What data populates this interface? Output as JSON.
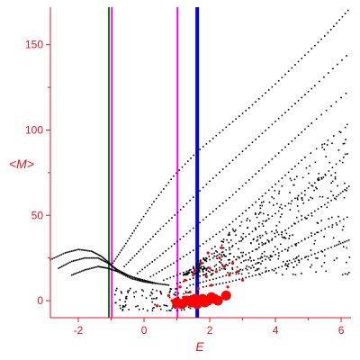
{
  "chart_data": {
    "type": "scatter",
    "title": "",
    "xlabel": "E",
    "ylabel": "<M>",
    "xlim": [
      -2.85,
      6.3
    ],
    "ylim": [
      -10,
      172
    ],
    "x_ticks": [
      -2,
      0,
      2,
      4,
      6
    ],
    "y_ticks": [
      0,
      50,
      100,
      150
    ],
    "x_tick_labels": [
      "-2",
      "0",
      "2",
      "4",
      "6"
    ],
    "y_tick_labels": [
      "0",
      "50",
      "100",
      "150"
    ],
    "grid": false,
    "legend": "none",
    "colors": {
      "axes": "#e8141e",
      "black_points": "#000000",
      "red_points": "#ff0000",
      "line_green": "#008000",
      "line_magenta": "#ff00ff",
      "line_blue": "#0000ff"
    },
    "vertical_lines": [
      {
        "x": -1.07,
        "color": "#008000",
        "width": "thin"
      },
      {
        "x": -0.98,
        "color": "#ff00ff",
        "width": "thin"
      },
      {
        "x": 1.02,
        "color": "#ff00ff",
        "width": "thin"
      },
      {
        "x": 1.62,
        "color": "#0000ff",
        "width": "thick"
      }
    ],
    "black_series": {
      "description": "dotted spectrum branches",
      "branches": [
        {
          "x": [
            -2.85,
            -2.4,
            -2.0,
            -1.6,
            -1.3,
            -1.05,
            -0.8,
            -0.4,
            0.0,
            0.4
          ],
          "y": [
            24,
            28,
            30,
            29,
            26,
            22,
            17,
            13,
            11,
            10
          ]
        },
        {
          "x": [
            -2.6,
            -2.2,
            -1.8,
            -1.4,
            -1.1,
            -0.8,
            -0.5,
            -0.1,
            0.3
          ],
          "y": [
            19,
            23,
            25,
            25,
            22,
            18,
            15,
            12,
            10
          ]
        },
        {
          "x": [
            -2.2,
            -1.8,
            -1.4,
            -1.1,
            -0.8,
            -0.4,
            0.0,
            0.4,
            0.8
          ],
          "y": [
            15,
            18,
            20,
            19,
            17,
            14,
            12,
            10,
            9
          ]
        },
        {
          "x": [
            -0.95,
            -0.6,
            -0.2,
            0.3,
            0.9,
            1.6,
            2.4,
            3.2,
            4.0,
            4.8,
            5.6,
            6.3
          ],
          "y": [
            22,
            32,
            44,
            58,
            73,
            87,
            100,
            113,
            127,
            142,
            157,
            172
          ]
        },
        {
          "x": [
            -0.6,
            -0.1,
            0.5,
            1.2,
            2.0,
            2.8,
            3.6,
            4.4,
            5.2,
            6.3
          ],
          "y": [
            20,
            30,
            42,
            55,
            70,
            84,
            98,
            112,
            126,
            146
          ]
        },
        {
          "x": [
            -0.2,
            0.4,
            1.1,
            1.9,
            2.7,
            3.5,
            4.3,
            5.1,
            6.3
          ],
          "y": [
            16,
            25,
            36,
            49,
            62,
            76,
            90,
            104,
            124
          ]
        },
        {
          "x": [
            0.2,
            0.9,
            1.7,
            2.5,
            3.3,
            4.1,
            4.9,
            6.3
          ],
          "y": [
            14,
            22,
            32,
            43,
            56,
            70,
            84,
            104
          ]
        },
        {
          "x": [
            0.6,
            1.4,
            2.2,
            3.0,
            3.8,
            4.6,
            5.4,
            6.3
          ],
          "y": [
            12,
            18,
            26,
            36,
            48,
            60,
            72,
            88
          ]
        },
        {
          "x": [
            1.0,
            1.8,
            2.6,
            3.4,
            4.2,
            5.0,
            5.8,
            6.3
          ],
          "y": [
            10,
            15,
            22,
            30,
            40,
            50,
            60,
            68
          ]
        },
        {
          "x": [
            1.4,
            2.2,
            3.0,
            3.8,
            4.6,
            5.4,
            6.3
          ],
          "y": [
            9,
            13,
            18,
            25,
            33,
            41,
            50
          ]
        },
        {
          "x": [
            1.8,
            2.6,
            3.4,
            4.2,
            5.0,
            5.8,
            6.3
          ],
          "y": [
            8,
            11,
            15,
            20,
            26,
            32,
            36
          ]
        }
      ],
      "scatter_region": {
        "x": [
          1.2,
          6.3
        ],
        "y": [
          15,
          110
        ]
      }
    },
    "red_points": [
      {
        "x": 0.85,
        "y": 0,
        "size": "small"
      },
      {
        "x": 1.0,
        "y": -1,
        "size": "large"
      },
      {
        "x": 1.15,
        "y": -2,
        "size": "large"
      },
      {
        "x": 1.3,
        "y": 0,
        "size": "large"
      },
      {
        "x": 1.45,
        "y": -1,
        "size": "large"
      },
      {
        "x": 1.55,
        "y": 1,
        "size": "large"
      },
      {
        "x": 1.62,
        "y": -2,
        "size": "large"
      },
      {
        "x": 1.7,
        "y": 0,
        "size": "large"
      },
      {
        "x": 1.78,
        "y": 1,
        "size": "large"
      },
      {
        "x": 1.85,
        "y": -1,
        "size": "large"
      },
      {
        "x": 1.95,
        "y": 0,
        "size": "large"
      },
      {
        "x": 2.05,
        "y": 2,
        "size": "large"
      },
      {
        "x": 2.15,
        "y": 1,
        "size": "large"
      },
      {
        "x": 2.25,
        "y": 0,
        "size": "large"
      },
      {
        "x": 2.5,
        "y": 3,
        "size": "large"
      },
      {
        "x": 0.4,
        "y": -3,
        "size": "small"
      },
      {
        "x": 0.75,
        "y": 3,
        "size": "small"
      },
      {
        "x": 1.1,
        "y": 8,
        "size": "small"
      },
      {
        "x": 1.25,
        "y": 12,
        "size": "small"
      },
      {
        "x": 1.55,
        "y": 18,
        "size": "small"
      },
      {
        "x": 1.75,
        "y": 22,
        "size": "small"
      },
      {
        "x": 1.9,
        "y": 14,
        "size": "small"
      },
      {
        "x": 2.05,
        "y": 9,
        "size": "small"
      },
      {
        "x": 2.2,
        "y": 17,
        "size": "small"
      },
      {
        "x": 2.3,
        "y": 25,
        "size": "small"
      },
      {
        "x": 2.45,
        "y": 20,
        "size": "small"
      },
      {
        "x": 2.6,
        "y": 15,
        "size": "small"
      },
      {
        "x": 2.7,
        "y": 22,
        "size": "small"
      },
      {
        "x": 2.85,
        "y": 17,
        "size": "small"
      },
      {
        "x": 3.0,
        "y": 12,
        "size": "small"
      },
      {
        "x": 1.4,
        "y": 5,
        "size": "small"
      },
      {
        "x": 1.65,
        "y": 7,
        "size": "small"
      },
      {
        "x": 1.95,
        "y": 28,
        "size": "small"
      },
      {
        "x": 2.35,
        "y": 31,
        "size": "small"
      },
      {
        "x": 2.55,
        "y": 8,
        "size": "small"
      },
      {
        "x": 0.95,
        "y": -4,
        "size": "small"
      },
      {
        "x": 1.2,
        "y": 2,
        "size": "small"
      },
      {
        "x": 2.0,
        "y": 19,
        "size": "small"
      },
      {
        "x": 1.5,
        "y": 15,
        "size": "small"
      }
    ]
  }
}
